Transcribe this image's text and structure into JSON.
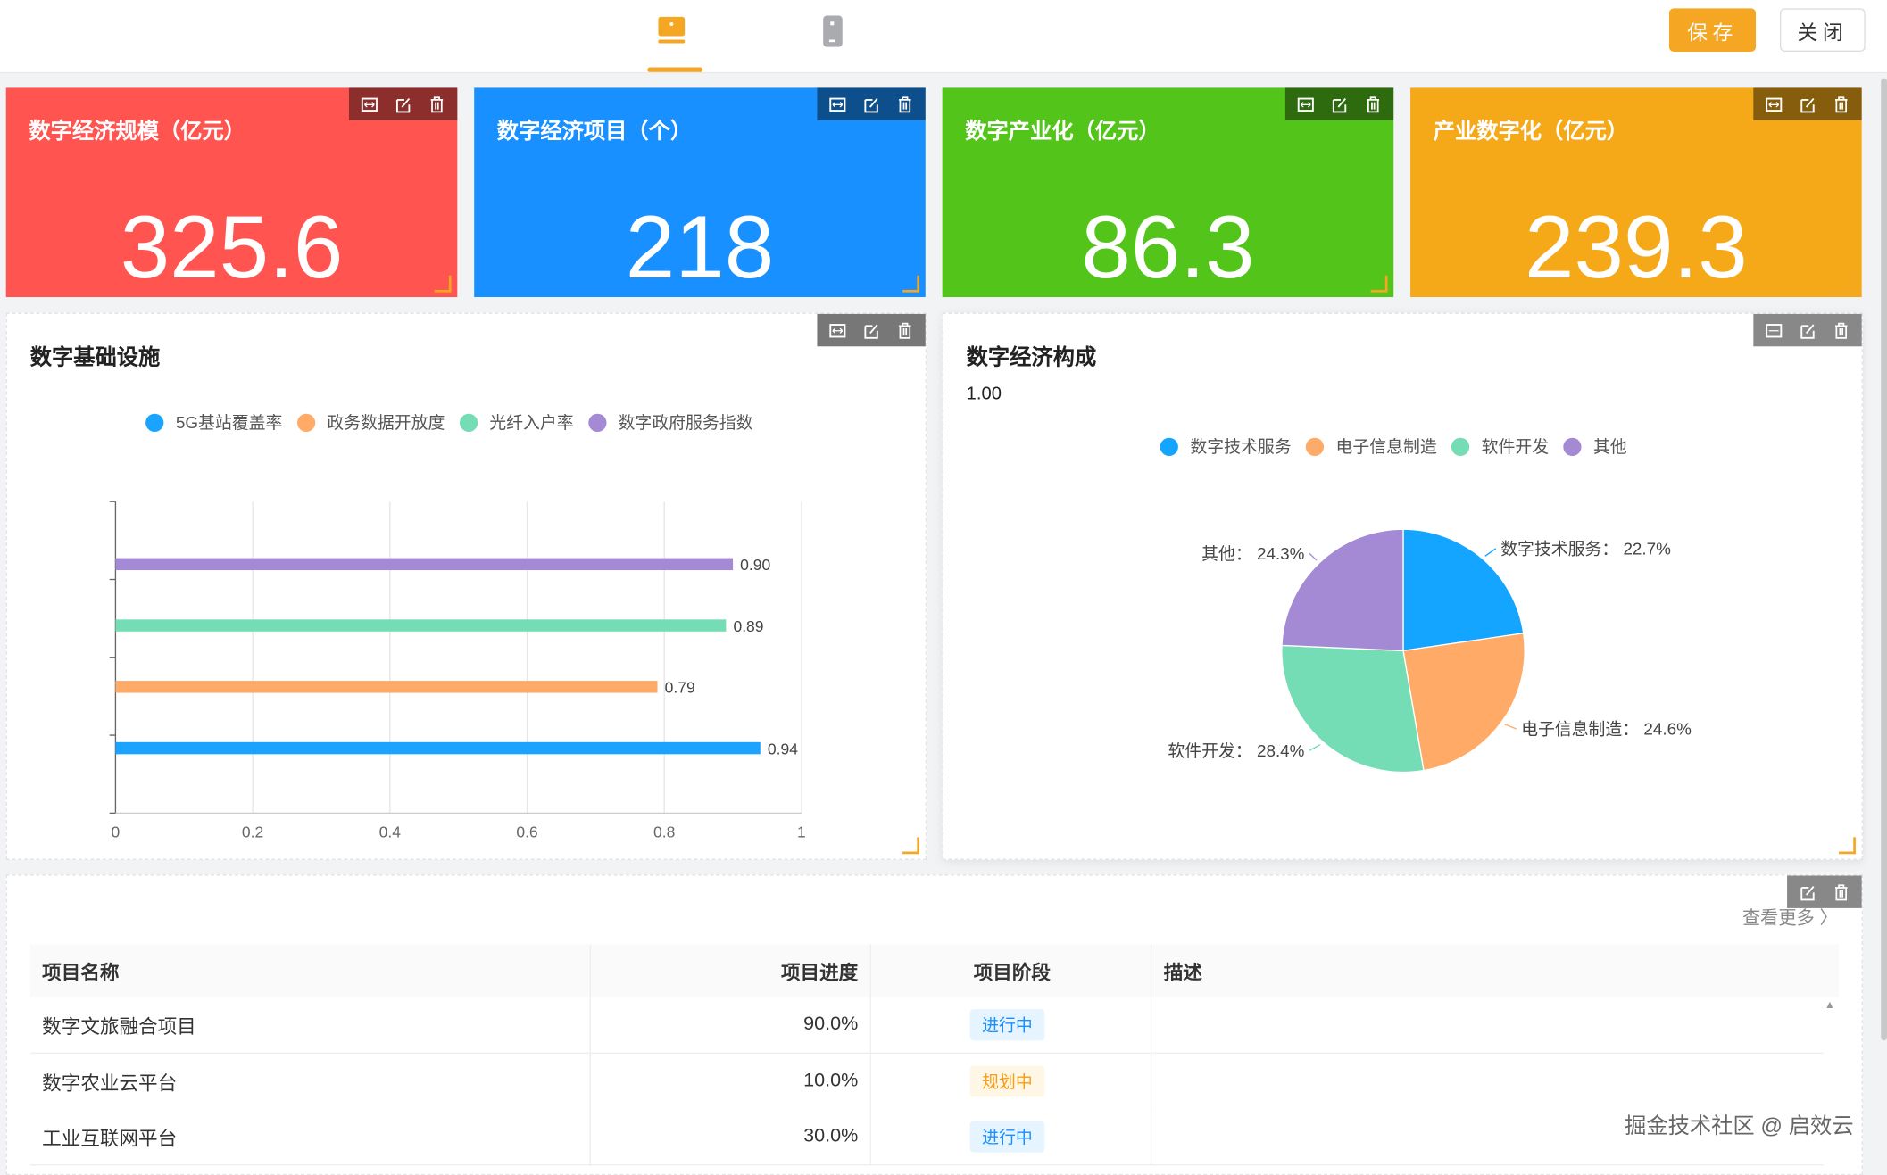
{
  "header": {
    "tabs": [
      {
        "icon": "desktop-icon",
        "active": true
      },
      {
        "icon": "mobile-icon",
        "active": false
      }
    ],
    "save_label": "保存",
    "close_label": "关闭",
    "accent": "#f5a623"
  },
  "stat_cards": [
    {
      "title": "数字经济规模（亿元）",
      "value": "325.6",
      "color": "#ff5450"
    },
    {
      "title": "数字经济项目（个）",
      "value": "218",
      "color": "#1890ff"
    },
    {
      "title": "数字产业化（亿元）",
      "value": "86.3",
      "color": "#52c41a"
    },
    {
      "title": "产业数字化（亿元）",
      "value": "239.3",
      "color": "#f5a818"
    }
  ],
  "toolbar_icons": [
    "expand-icon",
    "edit-icon",
    "delete-icon"
  ],
  "chart_data": [
    {
      "type": "bar",
      "orientation": "horizontal",
      "title": "数字基础设施",
      "legend": "top",
      "xlim": [
        0,
        1
      ],
      "x_ticks": [
        "0",
        "0.2",
        "0.4",
        "0.6",
        "0.8",
        "1"
      ],
      "grid": true,
      "series": [
        {
          "name": "5G基站覆盖率",
          "value": 0.94,
          "label": "0.94",
          "color": "#1aa3ff"
        },
        {
          "name": "政务数据开放度",
          "value": 0.79,
          "label": "0.79",
          "color": "#ffaa66"
        },
        {
          "name": "光纤入户率",
          "value": 0.89,
          "label": "0.89",
          "color": "#75ddb5"
        },
        {
          "name": "数字政府服务指数",
          "value": 0.9,
          "label": "0.90",
          "color": "#a48ad4"
        }
      ]
    },
    {
      "type": "pie",
      "title": "数字经济构成",
      "subtitle": "1.00",
      "legend": "top",
      "slices": [
        {
          "name": "数字技术服务",
          "value": 22.7,
          "label": "数字技术服务：  22.7%",
          "color": "#13a5ff"
        },
        {
          "name": "电子信息制造",
          "value": 24.6,
          "label": "电子信息制造：  24.6%",
          "color": "#ffaa66"
        },
        {
          "name": "软件开发",
          "value": 28.4,
          "label": "软件开发：  28.4%",
          "color": "#75ddb5"
        },
        {
          "name": "其他",
          "value": 24.3,
          "label": "其他：  24.3%",
          "color": "#a48ad4"
        }
      ]
    }
  ],
  "table": {
    "more_label": "查看更多 〉",
    "columns": [
      "项目名称",
      "项目进度",
      "项目阶段",
      "描述"
    ],
    "rows": [
      {
        "name": "数字文旅融合项目",
        "progress": "90.0%",
        "stage": "进行中",
        "stage_type": "active",
        "desc": ""
      },
      {
        "name": "数字农业云平台",
        "progress": "10.0%",
        "stage": "规划中",
        "stage_type": "planning",
        "desc": ""
      },
      {
        "name": "工业互联网平台",
        "progress": "30.0%",
        "stage": "进行中",
        "stage_type": "active",
        "desc": ""
      }
    ]
  },
  "watermark": "掘金技术社区 @ 启效云"
}
